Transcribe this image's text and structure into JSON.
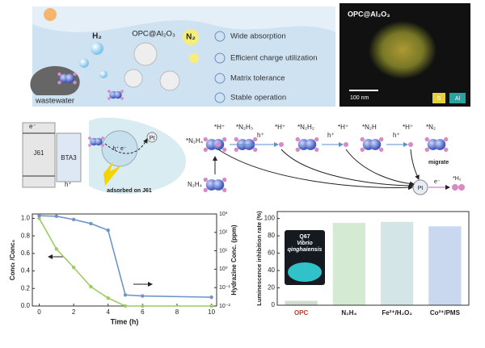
{
  "top": {
    "h2": "H₂",
    "catalyst": "OPC@Al₂O₃",
    "n2": "N₂",
    "source": "wastewater",
    "features": [
      "Wide absorption",
      "Efficient charge utilization",
      "Matrix tolerance",
      "Stable operation"
    ]
  },
  "micrograph": {
    "title": "OPC@Al₂O₃",
    "scale_bar": "100 nm",
    "legend": [
      "S",
      "Al"
    ]
  },
  "mechanism": {
    "electron": "e⁻",
    "donor": "J61",
    "acceptor": "BTA3",
    "hole": "h⁺",
    "pair": "h⁺ e⁻",
    "cocatalyst": "Pt",
    "adsorption": "adsorbed on J61",
    "reactant": "N₂H₄",
    "adsorbed": "*N₂H₄",
    "steps": [
      {
        "proton": "*H⁺",
        "species": "*N₂H₃"
      },
      {
        "proton": "*H⁺",
        "species": "*N₂H₂"
      },
      {
        "proton": "*H⁺",
        "species": "*N₂H"
      },
      {
        "proton": "*H⁺",
        "species": "*N₂"
      }
    ],
    "step_label": "h⁺",
    "migrate": "migrate",
    "pt": "Pt",
    "transfer": "e⁻",
    "product": "*H₂"
  },
  "chart_data": [
    {
      "type": "line",
      "x_label": "Time (h)",
      "y_label": "Concₜ /Conc₀",
      "y2_label": "Hydrazine Conc. (ppm)",
      "x": [
        0,
        1,
        2,
        3,
        4,
        5,
        6,
        10
      ],
      "series": [
        {
          "color": "#9ccc65",
          "values": [
            1.0,
            0.65,
            0.44,
            0.22,
            0.09,
            0.0,
            0.0,
            0.0
          ]
        },
        {
          "color": "#6f94c9",
          "axis": "y2",
          "values": [
            800,
            750,
            500,
            300,
            130,
            0.04,
            0.035,
            0.03
          ]
        }
      ],
      "xlim": [
        -0.4,
        10.3
      ],
      "xticks": [
        0,
        2,
        4,
        6,
        8,
        10
      ],
      "ylim": [
        0,
        1.05
      ],
      "yticks": [
        {
          "value": 0,
          "label": "0.0"
        },
        0.2,
        0.4,
        0.6,
        0.8,
        {
          "value": 1,
          "label": "1.0"
        }
      ],
      "y2lim": [
        0.01,
        1000
      ],
      "y2_log": true,
      "y2ticks": [
        {
          "value": 0.01,
          "label": "10⁻²"
        },
        {
          "value": 0.1,
          "label": "10⁻¹"
        },
        {
          "value": 1,
          "label": "10⁰"
        },
        {
          "value": 10,
          "label": "10¹"
        },
        {
          "value": 100,
          "label": "10²"
        },
        {
          "value": 1000,
          "label": "10³"
        }
      ]
    },
    {
      "type": "bar",
      "y_label": "Luminescence inhibition rate (%)",
      "inset_text": [
        "Q67",
        "Vibrio",
        "qinghaiensis"
      ],
      "categories": [
        "OPC",
        "N₂H₄",
        "Fe²⁺/H₂O₂",
        "Co²⁺/PMS"
      ],
      "values": [
        5,
        95,
        96,
        91
      ],
      "colors": [
        "#cfdccf",
        "#d5ead3",
        "#d3e5e6",
        "#c9d7ef"
      ],
      "label_colors": [
        "#c0392b",
        "#222",
        "#222",
        "#222"
      ],
      "ylim": [
        0,
        108
      ],
      "yticks": [
        0,
        20,
        40,
        60,
        80,
        100
      ]
    }
  ]
}
